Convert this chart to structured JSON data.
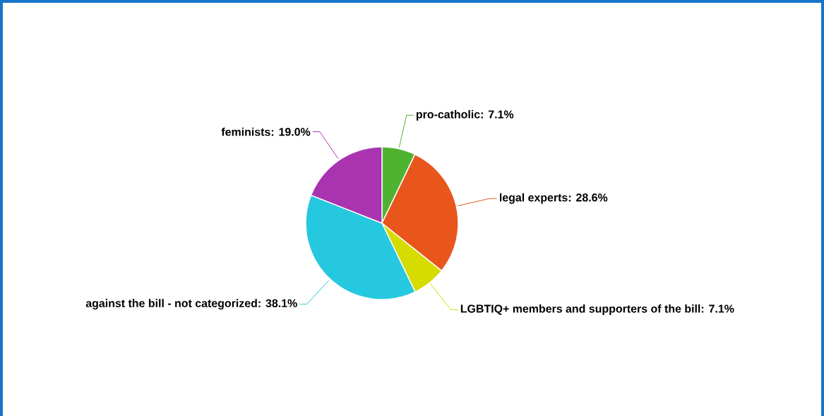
{
  "chart_data": {
    "type": "pie",
    "categories": [
      "pro-catholic",
      "legal experts",
      "LGBTIQ+ members and supporters of the bill",
      "against the bill - not categorized",
      "feminists"
    ],
    "values": [
      7.1,
      28.6,
      7.1,
      38.1,
      19.0
    ],
    "colors": [
      "#4db330",
      "#e8561c",
      "#d6dc00",
      "#26c8e0",
      "#aa33b0"
    ],
    "value_labels": [
      ": 7.1%",
      ": 28.6%",
      ": 7.1%",
      ": 38.1%",
      ": 19.0%"
    ]
  }
}
